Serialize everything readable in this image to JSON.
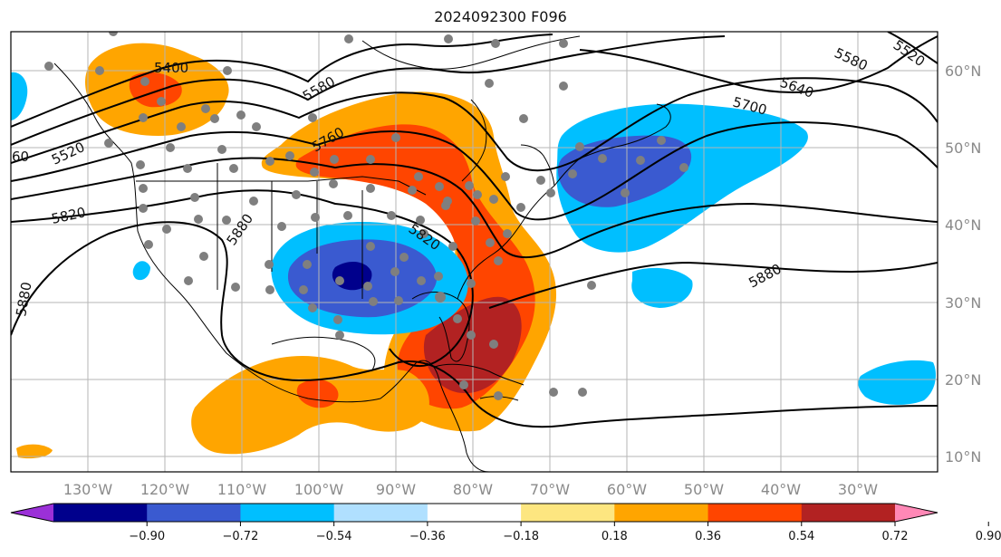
{
  "title": "2024092300 F096",
  "map": {
    "lon_labels": [
      "130°W",
      "120°W",
      "110°W",
      "100°W",
      "90°W",
      "80°W",
      "70°W",
      "60°W",
      "50°W",
      "40°W",
      "30°W"
    ],
    "lat_labels": [
      "60°N",
      "50°N",
      "40°N",
      "30°N",
      "20°N",
      "10°N"
    ],
    "contour_labels": [
      "5400",
      "5580",
      "5760",
      "5700",
      "5640",
      "5580",
      "5520",
      "5820",
      "5880",
      "5820",
      "5880",
      "5880",
      "5520",
      "60"
    ]
  },
  "colorbar": {
    "colors": [
      "#9b30d8",
      "#00008c",
      "#3a5ad0",
      "#00bfff",
      "#b0e0ff",
      "#ffffff",
      "#fde680",
      "#ffa500",
      "#ff4500",
      "#b22222",
      "#ff88b6"
    ],
    "tick_labels": [
      "−0.90",
      "−0.72",
      "−0.54",
      "−0.36",
      "−0.18",
      "0.18",
      "0.36",
      "0.54",
      "0.72",
      "0.90"
    ]
  }
}
